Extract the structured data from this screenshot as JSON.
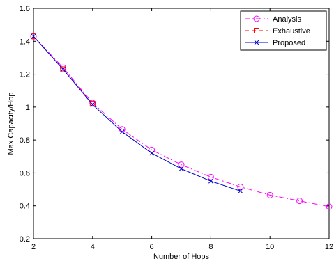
{
  "chart_data": {
    "type": "line",
    "title": "",
    "xlabel": "Number of Hops",
    "ylabel": "Max Capacity/Hop",
    "xlim": [
      2,
      12
    ],
    "ylim": [
      0.2,
      1.6
    ],
    "xticks": [
      2,
      4,
      6,
      8,
      10,
      12
    ],
    "yticks": [
      0.2,
      0.4,
      0.6,
      0.8,
      1.0,
      1.2,
      1.4,
      1.6
    ],
    "xtick_labels": [
      "2",
      "4",
      "6",
      "8",
      "10",
      "12"
    ],
    "ytick_labels": [
      "0.2",
      "0.4",
      "0.6",
      "0.8",
      "1",
      "1.2",
      "1.4",
      "1.6"
    ],
    "grid": false,
    "legend_position": "top-right",
    "series": [
      {
        "name": "Analysis",
        "color": "#ff00ff",
        "line_style": "dash-dot",
        "marker": "circle",
        "x": [
          2,
          3,
          4,
          5,
          6,
          7,
          8,
          9,
          10,
          11,
          12
        ],
        "y": [
          1.43,
          1.24,
          1.025,
          0.865,
          0.74,
          0.65,
          0.575,
          0.515,
          0.465,
          0.43,
          0.395
        ]
      },
      {
        "name": "Exhaustive",
        "color": "#ff0000",
        "line_style": "dashed",
        "marker": "square",
        "x": [
          2,
          3,
          4
        ],
        "y": [
          1.43,
          1.23,
          1.02
        ]
      },
      {
        "name": "Proposed",
        "color": "#0000cc",
        "line_style": "solid",
        "marker": "x",
        "x": [
          2,
          3,
          4,
          5,
          6,
          7,
          8,
          9
        ],
        "y": [
          1.43,
          1.23,
          1.015,
          0.85,
          0.72,
          0.625,
          0.55,
          0.49
        ]
      }
    ]
  }
}
